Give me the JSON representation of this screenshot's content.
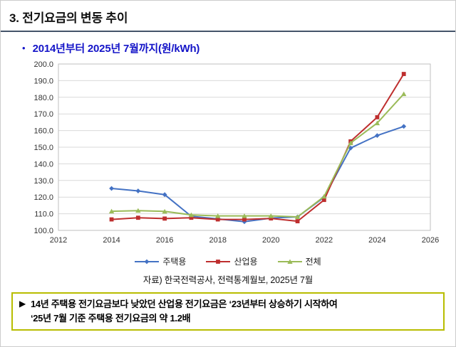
{
  "header": {
    "title": "3. 전기요금의 변동 추이"
  },
  "subtitle": {
    "bullet": "•",
    "text": "2014년부터 2025년 7월까지(원/kWh)"
  },
  "chart_data": {
    "type": "line",
    "x": [
      2014,
      2015,
      2016,
      2017,
      2018,
      2019,
      2020,
      2021,
      2022,
      2023,
      2024,
      2025
    ],
    "series": [
      {
        "name": "주택용",
        "color": "#4472C4",
        "marker": "diamond",
        "values": [
          125.2,
          123.7,
          121.5,
          108.5,
          106.9,
          105.2,
          107.4,
          108.1,
          119.9,
          149.5,
          157.0,
          162.5
        ]
      },
      {
        "name": "산업용",
        "color": "#BE2E2E",
        "marker": "square",
        "values": [
          106.6,
          107.6,
          107.1,
          107.6,
          106.6,
          106.6,
          107.2,
          105.5,
          118.3,
          153.5,
          168.0,
          194.0
        ]
      },
      {
        "name": "전체",
        "color": "#9BBB59",
        "marker": "triangle",
        "values": [
          111.5,
          111.9,
          111.4,
          109.3,
          108.7,
          108.7,
          108.7,
          108.1,
          120.4,
          152.5,
          164.5,
          182.0
        ]
      }
    ],
    "title": "",
    "xlabel": "",
    "ylabel": "",
    "xlim": [
      2012,
      2026
    ],
    "x_ticks": [
      2012,
      2014,
      2016,
      2018,
      2020,
      2022,
      2024,
      2026
    ],
    "ylim": [
      100,
      200
    ],
    "y_tick_step": 10,
    "grid": true,
    "legend_position": "bottom",
    "grid_color": "#d9d9d9",
    "border_color": "#bfbfbf",
    "tick_color": "#333333"
  },
  "source": {
    "text": "자료) 한국전력공사, 전력통계월보, 2025년 7월"
  },
  "note": {
    "arrow": "▶",
    "lines": [
      "14년 주택용 전기요금보다 낮았던 산업용 전기요금은 ‘23년부터 상승하기 시작하여",
      "‘25년 7월 기준 주택용 전기요금의 약 1.2배"
    ]
  }
}
